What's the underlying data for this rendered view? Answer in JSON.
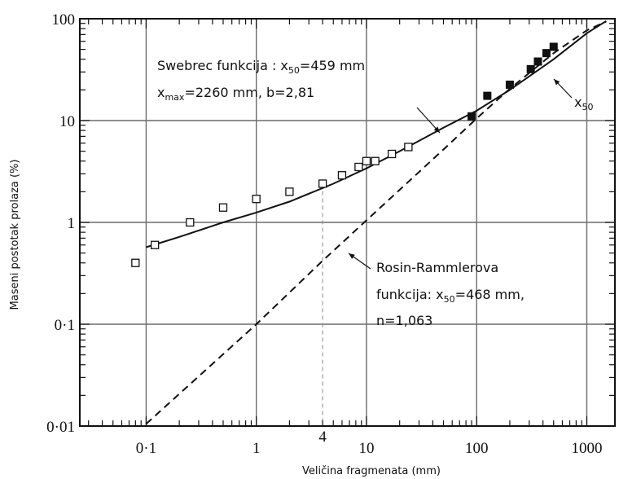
{
  "chart_data": {
    "type": "scatter",
    "x_scale": "log",
    "y_scale": "log",
    "xlim": [
      0.025,
      1800
    ],
    "ylim": [
      0.01,
      100
    ],
    "xlabel": "Veličina fragmenata (mm)",
    "ylabel": "Maseni postotak prolaza (%)",
    "x_ticks": [
      {
        "value": 0.1,
        "label": "0·1"
      },
      {
        "value": 1,
        "label": "1"
      },
      {
        "value": 4,
        "label": "4"
      },
      {
        "value": 10,
        "label": "10"
      },
      {
        "value": 100,
        "label": "100"
      },
      {
        "value": 1000,
        "label": "1000"
      }
    ],
    "y_ticks": [
      {
        "value": 100,
        "label": "100"
      },
      {
        "value": 10,
        "label": "10"
      },
      {
        "value": 1,
        "label": "1"
      },
      {
        "value": 0.1,
        "label": "0·1"
      },
      {
        "value": 0.01,
        "label": "0·01"
      }
    ],
    "grid": true,
    "series": [
      {
        "style": "open-square-markers",
        "x": [
          0.08,
          0.12,
          0.25,
          0.5,
          1.0,
          2.0,
          4.0,
          6.0,
          8.5,
          10.0,
          12.0,
          17.0,
          24.0
        ],
        "y": [
          0.4,
          0.6,
          1.0,
          1.4,
          1.7,
          2.0,
          2.4,
          2.9,
          3.5,
          4.0,
          4.0,
          4.7,
          5.5
        ]
      },
      {
        "style": "filled-square-markers",
        "x": [
          90,
          125,
          200,
          310,
          360,
          430,
          500
        ],
        "y": [
          11,
          17.5,
          22.5,
          32,
          38,
          46,
          53
        ]
      },
      {
        "style": "solid-curve",
        "x": [
          0.1,
          0.2,
          0.5,
          1,
          2,
          5,
          10,
          20,
          50,
          100,
          200,
          500,
          1000,
          1500
        ],
        "y": [
          0.57,
          0.72,
          1.0,
          1.25,
          1.6,
          2.4,
          3.4,
          5.0,
          8.5,
          12.5,
          20,
          40,
          72,
          95
        ]
      },
      {
        "style": "dashed-curve",
        "x": [
          0.1,
          1,
          4,
          10,
          50,
          100,
          200,
          500,
          1000,
          1500
        ],
        "y": [
          0.0105,
          0.1,
          0.42,
          1.05,
          5.2,
          10.5,
          20.5,
          46,
          77,
          94
        ]
      }
    ],
    "annotations": {
      "swebrec_line1_prefix": "Swebrec funkcija : x",
      "swebrec_line1_sub": "50",
      "swebrec_line1_suffix": "=459 mm",
      "swebrec_line2_prefix": "x",
      "swebrec_line2_sub": "max",
      "swebrec_line2_suffix": "=2260 mm, b=2,81",
      "rosin_line1": "Rosin-Rammlerova",
      "rosin_line2_prefix": "funkcija: x",
      "rosin_line2_sub": "50",
      "rosin_line2_suffix": "=468 mm,",
      "rosin_line3": "n=1,063",
      "x50_label_main": "x",
      "x50_label_sub": "50"
    }
  }
}
